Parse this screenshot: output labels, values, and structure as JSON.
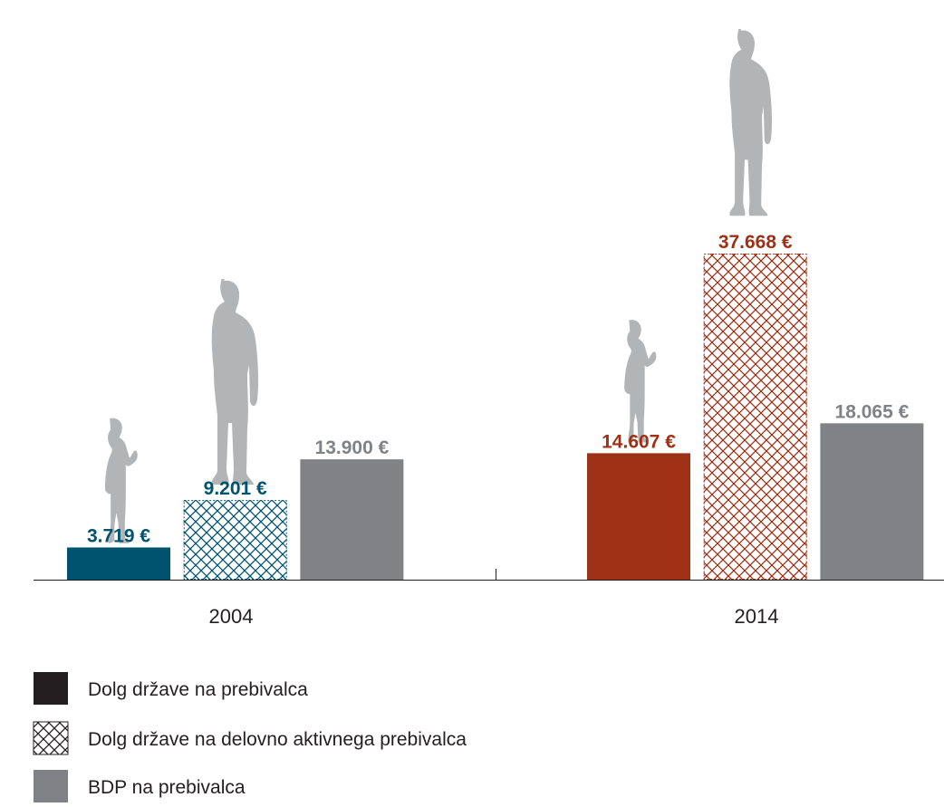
{
  "chart_data": {
    "type": "bar",
    "categories": [
      "2004",
      "2014"
    ],
    "category_colors": [
      "#00536f",
      "#9e3015"
    ],
    "series": [
      {
        "name": "Dolg države na prebivalca",
        "color": "#231f20",
        "values": [
          3719,
          14607
        ],
        "value_labels": [
          "3.719 €",
          "14.607 €"
        ]
      },
      {
        "name": "Dolg države na delovno aktivnega prebivalca",
        "color": "#231f20",
        "pattern": "crosshatch",
        "values": [
          9201,
          37668
        ],
        "value_labels": [
          "9.201 €",
          "37.668 €"
        ]
      },
      {
        "name": "BDP na prebivalca",
        "color": "#808285",
        "values": [
          13900,
          18065
        ],
        "value_labels": [
          "13.900 €",
          "18.065 €"
        ]
      }
    ],
    "legend": "bottom-left"
  }
}
